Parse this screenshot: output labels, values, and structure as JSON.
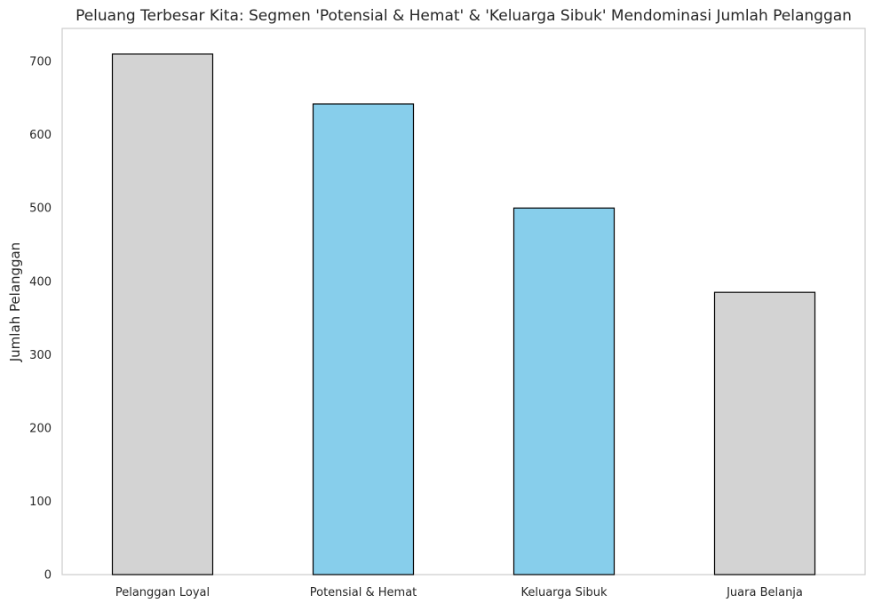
{
  "chart_data": {
    "type": "bar",
    "title": "Peluang Terbesar Kita: Segmen 'Potensial & Hemat' & 'Keluarga Sibuk' Mendominasi Jumlah Pelanggan",
    "xlabel": "",
    "ylabel": "Jumlah Pelanggan",
    "categories": [
      "Pelanggan Loyal",
      "Potensial & Hemat",
      "Keluarga Sibuk",
      "Juara Belanja"
    ],
    "values": [
      710,
      642,
      500,
      385
    ],
    "bar_colors": [
      "#d3d3d3",
      "#87ceeb",
      "#87ceeb",
      "#d3d3d3"
    ],
    "bar_edge_color": "#000000",
    "ylim": [
      0,
      745
    ],
    "yticks": [
      0,
      100,
      200,
      300,
      400,
      500,
      600,
      700
    ],
    "grid": false,
    "legend": "none"
  }
}
